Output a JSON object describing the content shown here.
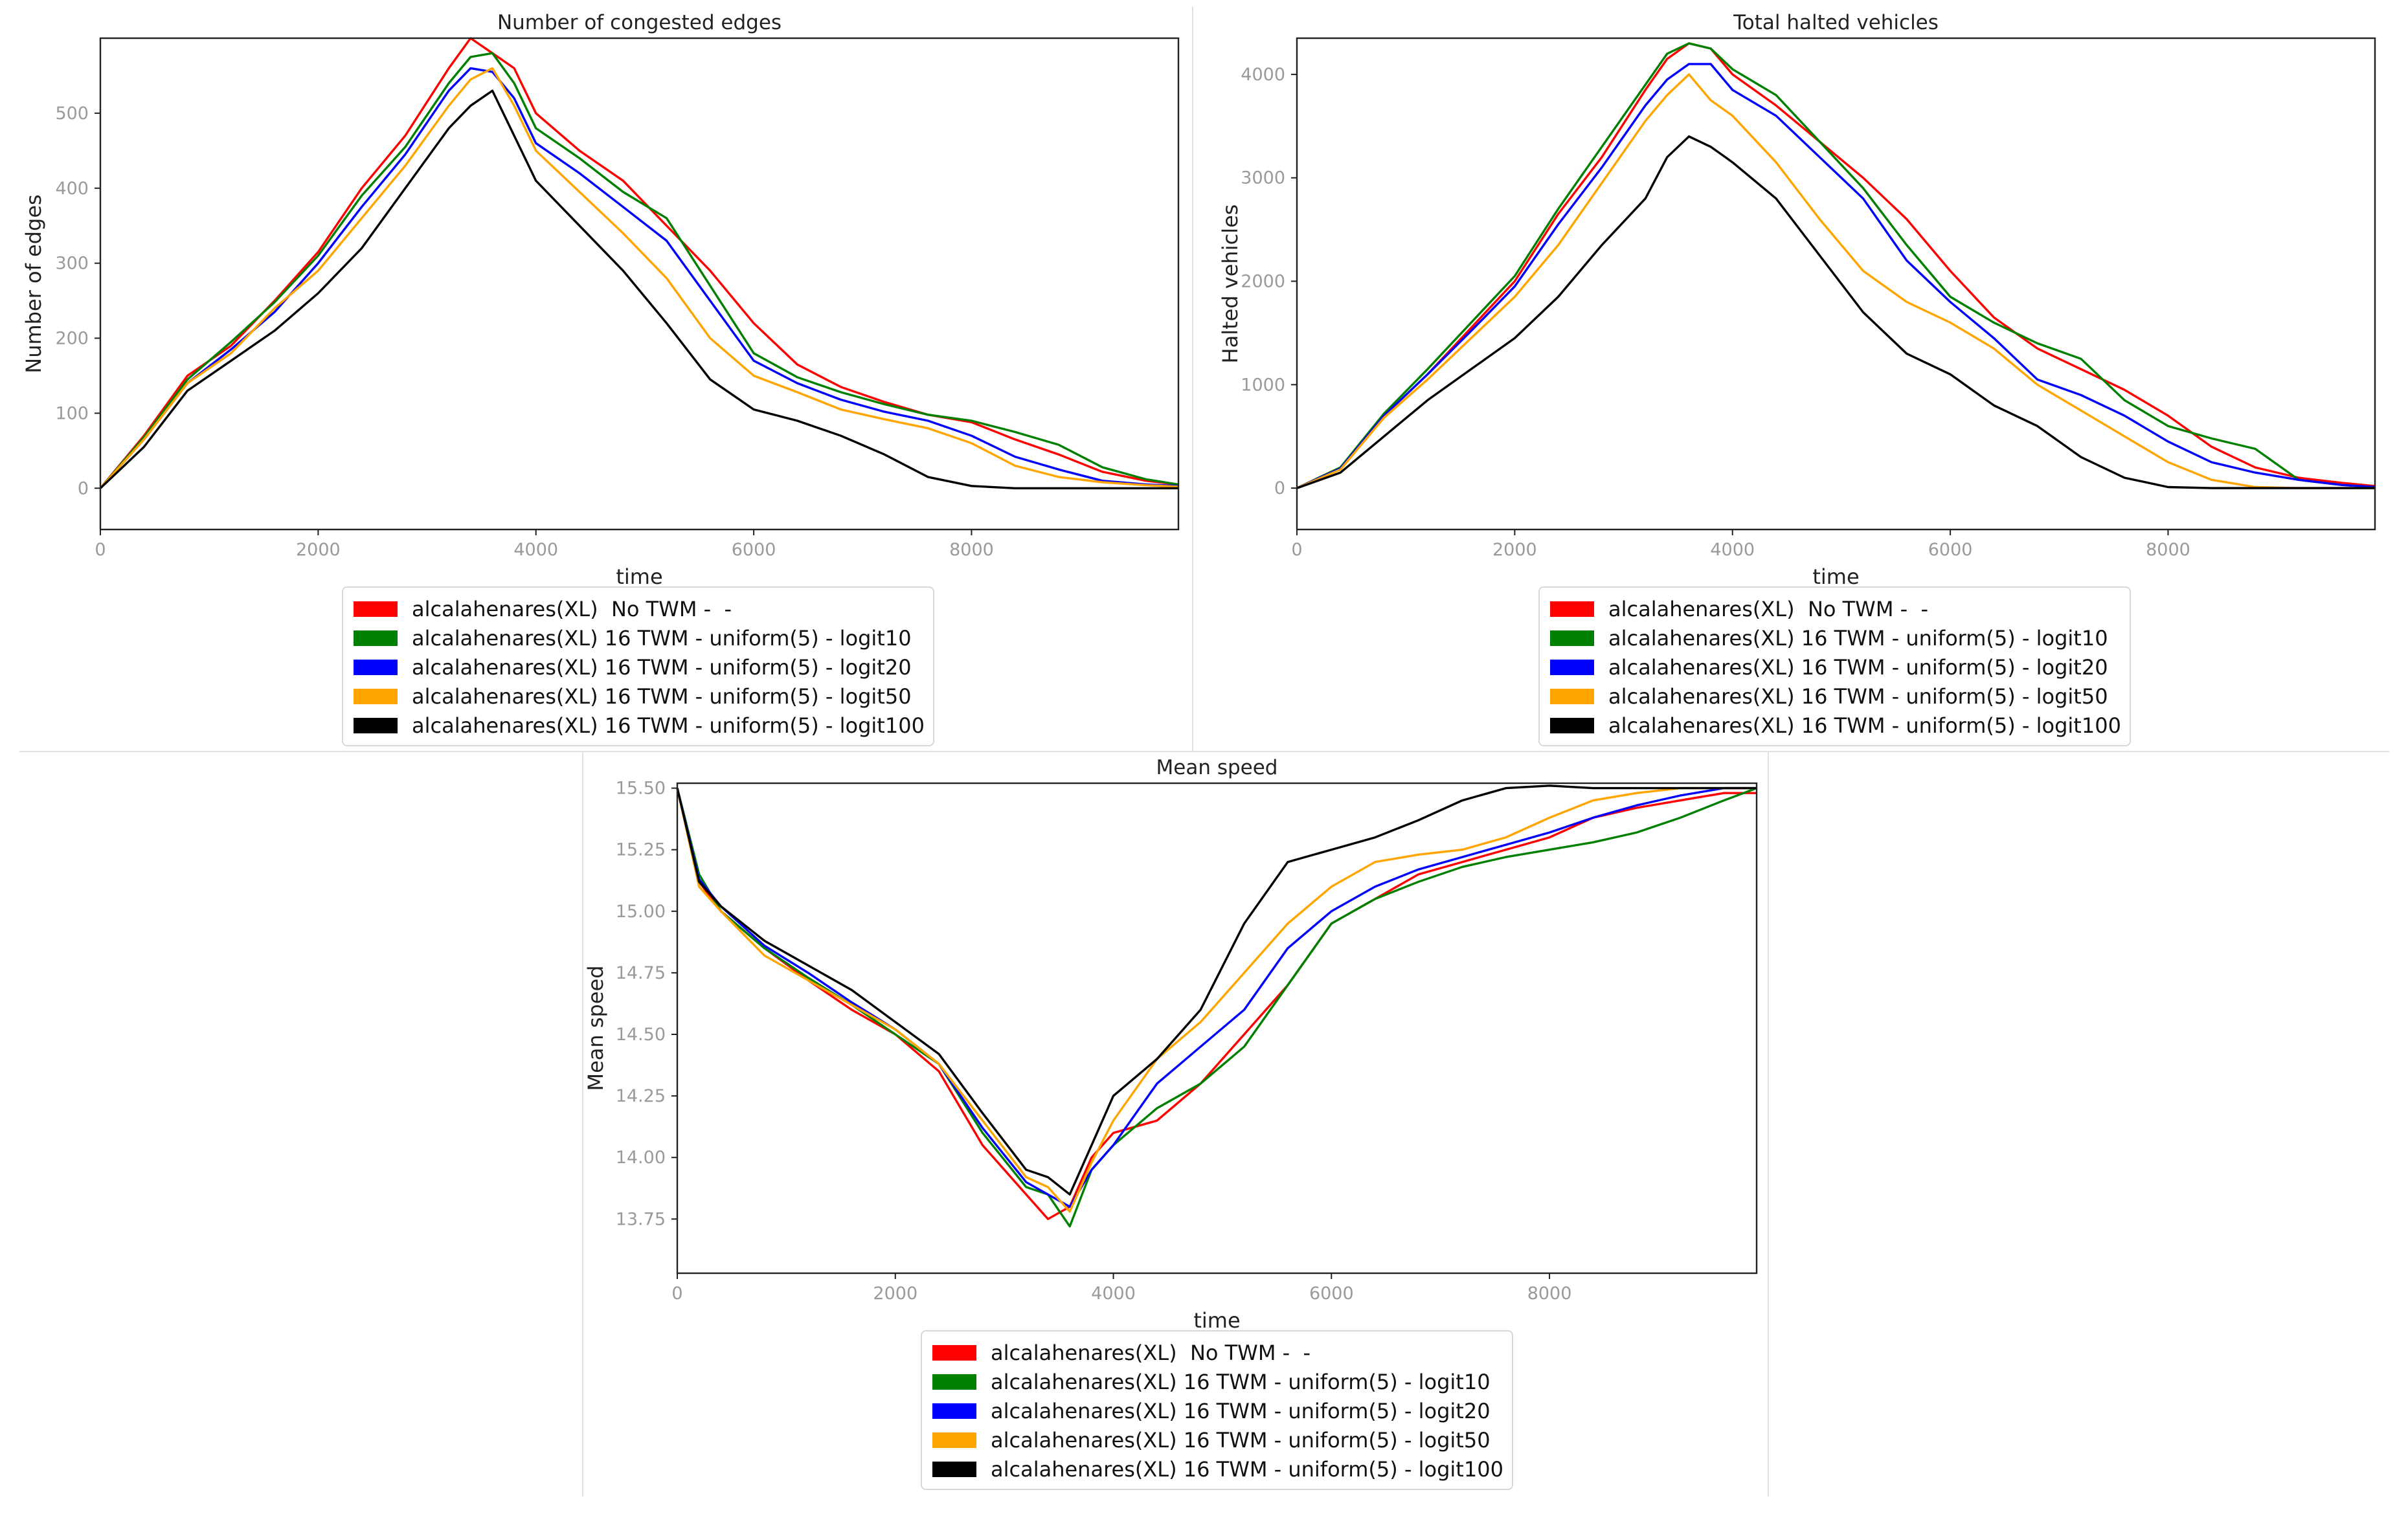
{
  "colors": {
    "red": "#ff0000",
    "green": "#008000",
    "blue": "#0000ff",
    "orange": "#ffa500",
    "black": "#000000"
  },
  "legend": [
    {
      "label": "alcalahenares(XL)  No TWM -  -",
      "color": "#ff0000"
    },
    {
      "label": "alcalahenares(XL) 16 TWM - uniform(5) - logit10",
      "color": "#008000"
    },
    {
      "label": "alcalahenares(XL) 16 TWM - uniform(5) - logit20",
      "color": "#0000ff"
    },
    {
      "label": "alcalahenares(XL) 16 TWM - uniform(5) - logit50",
      "color": "#ffa500"
    },
    {
      "label": "alcalahenares(XL) 16 TWM - uniform(5) - logit100",
      "color": "#000000"
    }
  ],
  "chart_data": [
    {
      "type": "line",
      "title": "Number of congested edges",
      "xlabel": "time",
      "ylabel": "Number of edges",
      "xlim": [
        0,
        9900
      ],
      "ylim": [
        -55,
        600
      ],
      "xticks": [
        0,
        2000,
        4000,
        6000,
        8000
      ],
      "yticks": [
        0,
        100,
        200,
        300,
        400,
        500
      ],
      "x": [
        0,
        400,
        800,
        1200,
        1600,
        2000,
        2400,
        2800,
        3200,
        3400,
        3600,
        3800,
        4000,
        4400,
        4800,
        5200,
        5600,
        6000,
        6400,
        6800,
        7200,
        7600,
        8000,
        8400,
        8800,
        9200,
        9600,
        9900
      ],
      "series": [
        {
          "name": "alcalahenares(XL)  No TWM -  -",
          "values": [
            0,
            70,
            150,
            190,
            250,
            315,
            400,
            470,
            560,
            600,
            580,
            560,
            500,
            450,
            410,
            350,
            290,
            220,
            165,
            135,
            115,
            98,
            88,
            65,
            45,
            22,
            10,
            5
          ]
        },
        {
          "name": "alcalahenares(XL) 16 TWM - uniform(5) - logit10",
          "values": [
            0,
            68,
            145,
            195,
            248,
            310,
            390,
            455,
            540,
            575,
            580,
            540,
            480,
            440,
            395,
            360,
            270,
            180,
            148,
            128,
            112,
            98,
            90,
            75,
            58,
            28,
            12,
            5
          ]
        },
        {
          "name": "alcalahenares(XL) 16 TWM - uniform(5) - logit20",
          "values": [
            0,
            65,
            140,
            185,
            235,
            300,
            375,
            445,
            530,
            560,
            555,
            520,
            460,
            420,
            375,
            330,
            250,
            170,
            140,
            118,
            102,
            90,
            70,
            42,
            25,
            10,
            5,
            3
          ]
        },
        {
          "name": "alcalahenares(XL) 16 TWM - uniform(5) - logit50",
          "values": [
            0,
            65,
            140,
            180,
            240,
            290,
            360,
            430,
            510,
            545,
            560,
            510,
            450,
            395,
            340,
            280,
            200,
            150,
            128,
            105,
            92,
            80,
            60,
            30,
            15,
            8,
            4,
            2
          ]
        },
        {
          "name": "alcalahenares(XL) 16 TWM - uniform(5) - logit100",
          "values": [
            0,
            55,
            130,
            170,
            210,
            260,
            320,
            400,
            480,
            510,
            530,
            470,
            410,
            350,
            290,
            220,
            145,
            105,
            90,
            70,
            45,
            15,
            3,
            0,
            0,
            0,
            0,
            0
          ]
        }
      ]
    },
    {
      "type": "line",
      "title": "Total halted vehicles",
      "xlabel": "time",
      "ylabel": "Halted vehicles",
      "xlim": [
        0,
        9900
      ],
      "ylim": [
        -400,
        4350
      ],
      "xticks": [
        0,
        2000,
        4000,
        6000,
        8000
      ],
      "yticks": [
        0,
        1000,
        2000,
        3000,
        4000
      ],
      "x": [
        0,
        400,
        800,
        1200,
        1600,
        2000,
        2400,
        2800,
        3200,
        3400,
        3600,
        3800,
        4000,
        4400,
        4800,
        5200,
        5600,
        6000,
        6400,
        6800,
        7200,
        7600,
        8000,
        8400,
        8800,
        9200,
        9600,
        9900
      ],
      "series": [
        {
          "name": "alcalahenares(XL)  No TWM -  -",
          "values": [
            0,
            200,
            700,
            1100,
            1550,
            2000,
            2650,
            3200,
            3850,
            4150,
            4300,
            4250,
            4000,
            3700,
            3350,
            3000,
            2600,
            2100,
            1650,
            1350,
            1150,
            950,
            700,
            400,
            200,
            100,
            50,
            20
          ]
        },
        {
          "name": "alcalahenares(XL) 16 TWM - uniform(5) - logit10",
          "values": [
            0,
            200,
            720,
            1150,
            1600,
            2050,
            2700,
            3300,
            3900,
            4200,
            4300,
            4250,
            4050,
            3800,
            3350,
            2900,
            2350,
            1850,
            1600,
            1400,
            1250,
            850,
            600,
            480,
            380,
            80,
            30,
            10
          ]
        },
        {
          "name": "alcalahenares(XL) 16 TWM - uniform(5) - logit20",
          "values": [
            0,
            190,
            700,
            1100,
            1520,
            1950,
            2550,
            3100,
            3700,
            3950,
            4100,
            4100,
            3850,
            3600,
            3200,
            2800,
            2200,
            1800,
            1450,
            1050,
            900,
            700,
            450,
            250,
            150,
            80,
            30,
            10
          ]
        },
        {
          "name": "alcalahenares(XL) 16 TWM - uniform(5) - logit50",
          "values": [
            0,
            180,
            680,
            1050,
            1450,
            1850,
            2350,
            2950,
            3550,
            3800,
            4000,
            3750,
            3600,
            3150,
            2600,
            2100,
            1800,
            1600,
            1350,
            1000,
            750,
            500,
            250,
            80,
            10,
            0,
            0,
            0
          ]
        },
        {
          "name": "alcalahenares(XL) 16 TWM - uniform(5) - logit100",
          "values": [
            0,
            150,
            500,
            850,
            1150,
            1450,
            1850,
            2350,
            2800,
            3200,
            3400,
            3300,
            3150,
            2800,
            2250,
            1700,
            1300,
            1100,
            800,
            600,
            300,
            100,
            10,
            0,
            0,
            0,
            0,
            0
          ]
        }
      ]
    },
    {
      "type": "line",
      "title": "Mean speed",
      "xlabel": "time",
      "ylabel": "Mean speed",
      "xlim": [
        0,
        9900
      ],
      "ylim": [
        13.53,
        15.52
      ],
      "xticks": [
        0,
        2000,
        4000,
        6000,
        8000
      ],
      "yticks": [
        13.75,
        14.0,
        14.25,
        14.5,
        14.75,
        15.0,
        15.25,
        15.5
      ],
      "x": [
        0,
        200,
        400,
        800,
        1200,
        1600,
        2000,
        2400,
        2800,
        3200,
        3400,
        3600,
        3800,
        4000,
        4400,
        4800,
        5200,
        5600,
        6000,
        6400,
        6800,
        7200,
        7600,
        8000,
        8400,
        8800,
        9200,
        9600,
        9900
      ],
      "series": [
        {
          "name": "alcalahenares(XL)  No TWM -  -",
          "values": [
            15.5,
            15.12,
            15.0,
            14.85,
            14.72,
            14.6,
            14.5,
            14.35,
            14.05,
            13.85,
            13.75,
            13.8,
            14.0,
            14.1,
            14.15,
            14.3,
            14.5,
            14.7,
            14.95,
            15.05,
            15.15,
            15.2,
            15.25,
            15.3,
            15.38,
            15.42,
            15.45,
            15.48,
            15.48
          ]
        },
        {
          "name": "alcalahenares(XL) 16 TWM - uniform(5) - logit10",
          "values": [
            15.5,
            15.15,
            15.0,
            14.85,
            14.73,
            14.62,
            14.5,
            14.38,
            14.1,
            13.88,
            13.85,
            13.72,
            13.95,
            14.05,
            14.2,
            14.3,
            14.45,
            14.7,
            14.95,
            15.05,
            15.12,
            15.18,
            15.22,
            15.25,
            15.28,
            15.32,
            15.38,
            15.45,
            15.5
          ]
        },
        {
          "name": "alcalahenares(XL) 16 TWM - uniform(5) - logit20",
          "values": [
            15.5,
            15.13,
            15.02,
            14.86,
            14.75,
            14.63,
            14.52,
            14.38,
            14.12,
            13.9,
            13.85,
            13.8,
            13.95,
            14.05,
            14.3,
            14.45,
            14.6,
            14.85,
            15.0,
            15.1,
            15.17,
            15.22,
            15.27,
            15.32,
            15.38,
            15.43,
            15.47,
            15.5,
            15.5
          ]
        },
        {
          "name": "alcalahenares(XL) 16 TWM - uniform(5) - logit50",
          "values": [
            15.5,
            15.1,
            15.0,
            14.82,
            14.72,
            14.62,
            14.52,
            14.38,
            14.15,
            13.92,
            13.88,
            13.78,
            13.98,
            14.15,
            14.4,
            14.55,
            14.75,
            14.95,
            15.1,
            15.2,
            15.23,
            15.25,
            15.3,
            15.38,
            15.45,
            15.48,
            15.5,
            15.5,
            15.5
          ]
        },
        {
          "name": "alcalahenares(XL) 16 TWM - uniform(5) - logit100",
          "values": [
            15.5,
            15.12,
            15.02,
            14.88,
            14.78,
            14.68,
            14.55,
            14.42,
            14.18,
            13.95,
            13.92,
            13.85,
            14.05,
            14.25,
            14.4,
            14.6,
            14.95,
            15.2,
            15.25,
            15.3,
            15.37,
            15.45,
            15.5,
            15.51,
            15.5,
            15.5,
            15.5,
            15.5,
            15.5
          ]
        }
      ]
    }
  ]
}
